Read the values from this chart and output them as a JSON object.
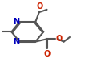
{
  "line_color": "#555555",
  "N_color": "#0000bb",
  "O_color": "#cc2200",
  "linewidth": 1.5,
  "font_size": 7,
  "xlim": [
    0.0,
    1.05
  ],
  "ylim": [
    0.05,
    1.0
  ]
}
